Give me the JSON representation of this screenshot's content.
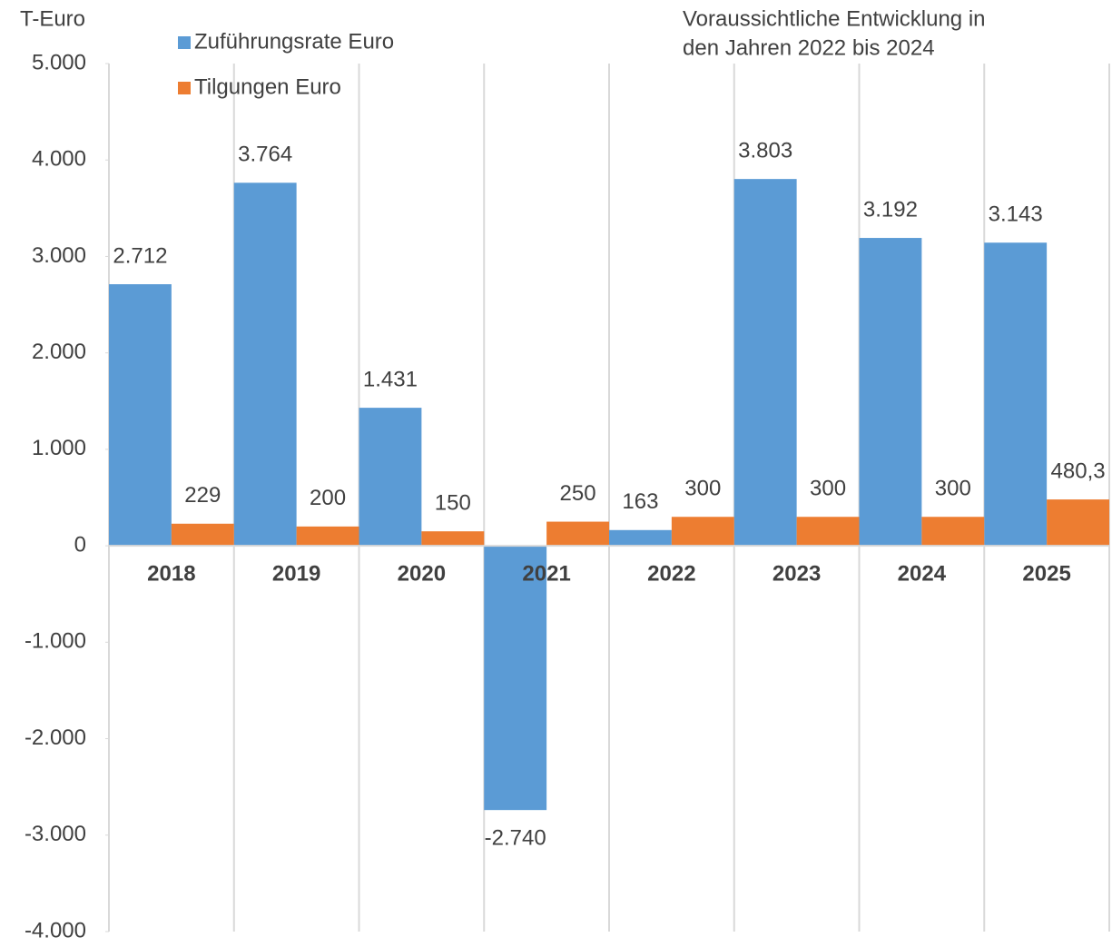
{
  "chart_data": {
    "type": "bar",
    "y_label": "T-Euro",
    "annotation": [
      "Voraussichtliche Entwicklung in",
      "den Jahren 2022 bis 2024"
    ],
    "categories": [
      "2018",
      "2019",
      "2020",
      "2021",
      "2022",
      "2023",
      "2024",
      "2025"
    ],
    "series": [
      {
        "name": "Zuführungsrate Euro",
        "color": "#5b9bd5",
        "values": [
          2712,
          3764,
          1431,
          -2740,
          163,
          3803,
          3192,
          3143
        ],
        "value_labels": [
          "2.712",
          "3.764",
          "1.431",
          "-2.740",
          "163",
          "3.803",
          "3.192",
          "3.143"
        ]
      },
      {
        "name": "Tilgungen Euro",
        "color": "#ed7d31",
        "values": [
          229,
          200,
          150,
          250,
          300,
          300,
          300,
          480.3
        ],
        "value_labels": [
          "229",
          "200",
          "150",
          "250",
          "300",
          "300",
          "300",
          "480,3"
        ]
      }
    ],
    "ylim": [
      -4000,
      5000
    ],
    "yticks": [
      {
        "value": 5000,
        "label": "5.000"
      },
      {
        "value": 4000,
        "label": "4.000"
      },
      {
        "value": 3000,
        "label": "3.000"
      },
      {
        "value": 2000,
        "label": "2.000"
      },
      {
        "value": 1000,
        "label": "1.000"
      },
      0,
      {
        "value": -1000,
        "label": "-1.000"
      },
      {
        "value": -2000,
        "label": "-2.000"
      },
      {
        "value": -3000,
        "label": "-3.000"
      },
      {
        "value": -4000,
        "label": "-4.000"
      }
    ]
  }
}
